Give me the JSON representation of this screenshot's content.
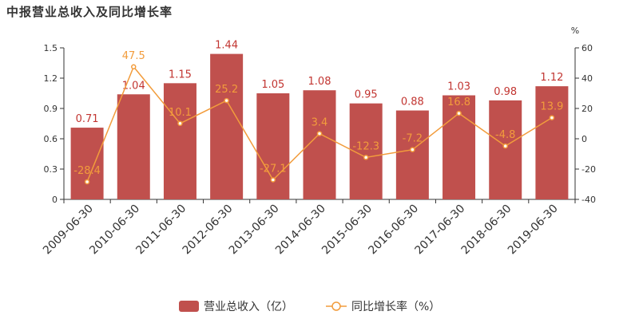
{
  "chart_data": {
    "type": "bar",
    "title": "中报营业总收入及同比增长率",
    "categories": [
      "2009-06-30",
      "2010-06-30",
      "2011-06-30",
      "2012-06-30",
      "2013-06-30",
      "2014-06-30",
      "2015-06-30",
      "2016-06-30",
      "2017-06-30",
      "2018-06-30",
      "2019-06-30"
    ],
    "series": [
      {
        "name": "营业总收入（亿）",
        "type": "bar",
        "axis": "left",
        "values": [
          0.71,
          1.04,
          1.15,
          1.44,
          1.05,
          1.08,
          0.95,
          0.88,
          1.03,
          0.98,
          1.12
        ],
        "labels": [
          "0.71",
          "1.04",
          "1.15",
          "1.44",
          "1.05",
          "1.08",
          "0.95",
          "0.88",
          "1.03",
          "0.98",
          "1.12"
        ]
      },
      {
        "name": "同比增长率（%）",
        "type": "line",
        "axis": "right",
        "values": [
          -28.4,
          47.5,
          10.1,
          25.2,
          -27.1,
          3.4,
          -12.3,
          -7.2,
          16.8,
          -4.8,
          13.9
        ],
        "labels": [
          "-28.4",
          "47.5",
          "10.1",
          "25.2",
          "-27.1",
          "3.4",
          "-12.3",
          "-7.2",
          "16.8",
          "-4.8",
          "13.9"
        ]
      }
    ],
    "y_left": {
      "ylim": [
        0,
        1.5
      ],
      "ticks": [
        "0",
        "0.3",
        "0.6",
        "0.9",
        "1.2",
        "1.5"
      ]
    },
    "y_right": {
      "ylim": [
        -40,
        60
      ],
      "ticks": [
        "-40",
        "-20",
        "0",
        "20",
        "40",
        "60"
      ],
      "unit": "%"
    },
    "grid": false,
    "legend_position": "bottom-center",
    "colors": {
      "bar": "#c23531",
      "bar_fill": "#c0504d",
      "line": "#f29c3c",
      "text": "#333333"
    }
  }
}
